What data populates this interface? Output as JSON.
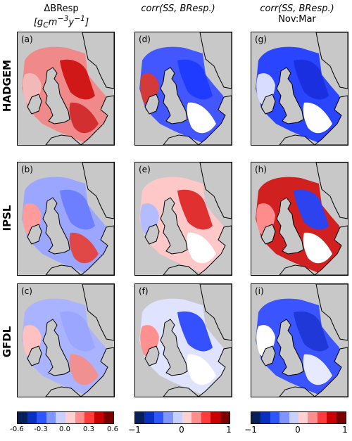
{
  "columns": [
    {
      "line1": "ΔBResp",
      "line2": "[g_C m^-3 y^-1]"
    },
    {
      "line1": "corr(SS, BResp.)",
      "line2": ""
    },
    {
      "line1": "corr(SS, BResp.)",
      "line2": "Nov:Mar"
    }
  ],
  "rows": [
    "HADGEM",
    "IPSL",
    "GFDL"
  ],
  "panel_labels": [
    "(a)",
    "(d)",
    "(g)",
    "(b)",
    "(e)",
    "(h)",
    "(c)",
    "(f)",
    "(i)"
  ],
  "colorbars": [
    {
      "ticks": [
        "-0.6",
        "-0.3",
        "0.0",
        "0.3",
        "0.6"
      ]
    },
    {
      "ticks": [
        "−1",
        "0",
        "1"
      ]
    },
    {
      "ticks": [
        "−1",
        "0",
        "1"
      ]
    }
  ],
  "colors": {
    "land": "#c8c8c8",
    "scale": [
      "#08205a",
      "#0a30c0",
      "#2f55ff",
      "#7f95ff",
      "#c8d0ff",
      "#ffd0d0",
      "#ff8f8f",
      "#ff3b3b",
      "#c80000",
      "#7a0000"
    ]
  },
  "map_fields": [
    [
      "#f08a8a",
      "#d01818",
      "#f3b8b8",
      "#d23030"
    ],
    [
      "#4257ff",
      "#1e3bff",
      "#d43a3a",
      "#ffffff"
    ],
    [
      "#2a45ff",
      "#1a30e0",
      "#d8ddff",
      "#ffffff"
    ],
    [
      "#9aa6ff",
      "#6d7fff",
      "#ff9b9b",
      "#e04848"
    ],
    [
      "#ffc8c8",
      "#e03030",
      "#b3bcff",
      "#ffffff"
    ],
    [
      "#d02020",
      "#2d43f0",
      "#ff8c8c",
      "#ffffff"
    ],
    [
      "#a9b3ff",
      "#9aa6ff",
      "#ffc0c0",
      "#f09090"
    ],
    [
      "#dfe3ff",
      "#3550ff",
      "#ff9090",
      "#ffffff"
    ],
    [
      "#3a55ff",
      "#2038d8",
      "#ffffff",
      "#e7eaff"
    ]
  ]
}
